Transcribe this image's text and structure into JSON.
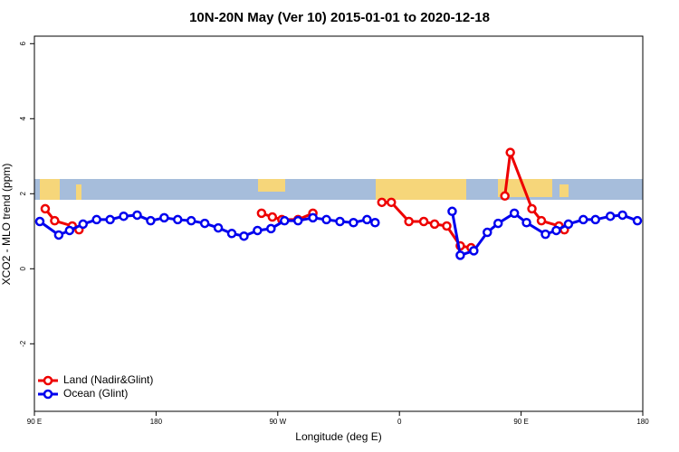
{
  "chart_data": {
    "type": "line",
    "title": "10N-20N May (Ver 10)   2015-01-01 to 2020-12-18",
    "x_label": "Longitude (deg E)",
    "y_label": "XCO2 - MLO trend (ppm)",
    "xlim": [
      90,
      540
    ],
    "ylim": [
      -3.8,
      6.2
    ],
    "xticks": [
      {
        "value": 90,
        "label": "90 E"
      },
      180,
      {
        "value": 270,
        "label": "90 W"
      },
      {
        "value": 360,
        "label": "0"
      },
      {
        "value": 450,
        "label": "90 E"
      },
      {
        "value": 540,
        "label": "180"
      }
    ],
    "yticks": [
      -2,
      0,
      2,
      4,
      6
    ],
    "legend": "bottom-left",
    "series": [
      {
        "name": "Land (Nadir&Glint)",
        "color": "#ee0000",
        "x": [
          98,
          105,
          118,
          123,
          null,
          258,
          266,
          273,
          285,
          296,
          null,
          347,
          354,
          367,
          378,
          386,
          395,
          405,
          413,
          null,
          438,
          442,
          458,
          465,
          478,
          482
        ],
        "values": [
          1.6,
          1.28,
          1.14,
          1.04,
          null,
          1.48,
          1.38,
          1.31,
          1.31,
          1.48,
          null,
          1.77,
          1.77,
          1.26,
          1.26,
          1.19,
          1.14,
          0.61,
          0.56,
          null,
          1.94,
          3.1,
          1.6,
          1.28,
          1.14,
          1.04
        ]
      },
      {
        "name": "Ocean (Glint)",
        "color": "#0000ee",
        "x": [
          94,
          108,
          116,
          126,
          136,
          146,
          156,
          166,
          176,
          186,
          196,
          206,
          216,
          226,
          236,
          245,
          255,
          265,
          275,
          285,
          296,
          306,
          316,
          326,
          336,
          342,
          null,
          399,
          405,
          415,
          425,
          433,
          445,
          454,
          468,
          476,
          485,
          496,
          505,
          516,
          525,
          536
        ],
        "values": [
          1.26,
          0.9,
          1.02,
          1.19,
          1.31,
          1.31,
          1.4,
          1.43,
          1.28,
          1.36,
          1.31,
          1.28,
          1.21,
          1.09,
          0.94,
          0.87,
          1.02,
          1.07,
          1.28,
          1.28,
          1.36,
          1.31,
          1.26,
          1.23,
          1.31,
          1.23,
          null,
          1.53,
          0.36,
          0.48,
          0.97,
          1.21,
          1.48,
          1.23,
          0.92,
          1.02,
          1.19,
          1.31,
          1.31,
          1.4,
          1.43,
          1.28
        ]
      }
    ]
  }
}
